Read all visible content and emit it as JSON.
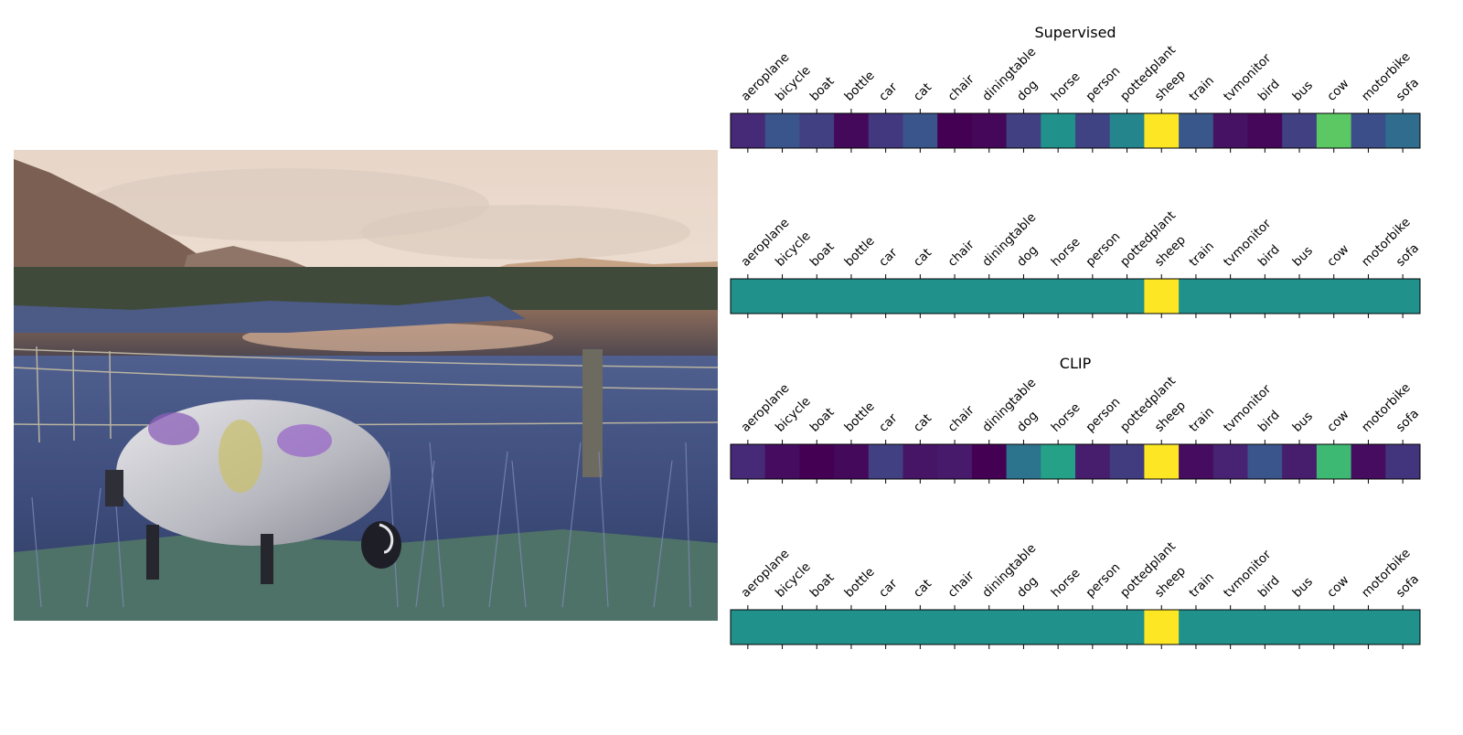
{
  "photo": {
    "subject": "sheep-grazing-photo"
  },
  "chart_data": [
    {
      "type": "heatmap",
      "title": "Supervised",
      "categories": [
        "aeroplane",
        "bicycle",
        "boat",
        "bottle",
        "car",
        "cat",
        "chair",
        "diningtable",
        "dog",
        "horse",
        "person",
        "pottedplant",
        "sheep",
        "train",
        "tvmonitor",
        "bird",
        "bus",
        "cow",
        "motorbike",
        "sofa"
      ],
      "values": [
        0.14,
        0.26,
        0.2,
        0.03,
        0.18,
        0.26,
        0.0,
        0.02,
        0.2,
        0.5,
        0.21,
        0.45,
        1.0,
        0.27,
        0.06,
        0.02,
        0.2,
        0.75,
        0.24,
        0.35
      ],
      "colormap": "viridis",
      "vlim": [
        0,
        1
      ]
    },
    {
      "type": "heatmap",
      "title": "",
      "categories": [
        "aeroplane",
        "bicycle",
        "boat",
        "bottle",
        "car",
        "cat",
        "chair",
        "diningtable",
        "dog",
        "horse",
        "person",
        "pottedplant",
        "sheep",
        "train",
        "tvmonitor",
        "bird",
        "bus",
        "cow",
        "motorbike",
        "sofa"
      ],
      "values": [
        0.5,
        0.5,
        0.5,
        0.5,
        0.5,
        0.5,
        0.5,
        0.5,
        0.5,
        0.5,
        0.5,
        0.5,
        1.0,
        0.5,
        0.5,
        0.5,
        0.5,
        0.5,
        0.5,
        0.5
      ],
      "colormap": "viridis",
      "vlim": [
        0,
        1
      ]
    },
    {
      "type": "heatmap",
      "title": "CLIP",
      "categories": [
        "aeroplane",
        "bicycle",
        "boat",
        "bottle",
        "car",
        "cat",
        "chair",
        "diningtable",
        "dog",
        "horse",
        "person",
        "pottedplant",
        "sheep",
        "train",
        "tvmonitor",
        "bird",
        "bus",
        "cow",
        "motorbike",
        "sofa"
      ],
      "values": [
        0.14,
        0.04,
        0.0,
        0.03,
        0.2,
        0.07,
        0.09,
        0.0,
        0.38,
        0.57,
        0.1,
        0.19,
        1.0,
        0.04,
        0.12,
        0.26,
        0.1,
        0.68,
        0.04,
        0.17
      ],
      "colormap": "viridis",
      "vlim": [
        0,
        1
      ]
    },
    {
      "type": "heatmap",
      "title": "",
      "categories": [
        "aeroplane",
        "bicycle",
        "boat",
        "bottle",
        "car",
        "cat",
        "chair",
        "diningtable",
        "dog",
        "horse",
        "person",
        "pottedplant",
        "sheep",
        "train",
        "tvmonitor",
        "bird",
        "bus",
        "cow",
        "motorbike",
        "sofa"
      ],
      "values": [
        0.5,
        0.5,
        0.5,
        0.5,
        0.5,
        0.5,
        0.5,
        0.5,
        0.5,
        0.5,
        0.5,
        0.5,
        1.0,
        0.5,
        0.5,
        0.5,
        0.5,
        0.5,
        0.5,
        0.5
      ],
      "colormap": "viridis",
      "vlim": [
        0,
        1
      ]
    }
  ]
}
